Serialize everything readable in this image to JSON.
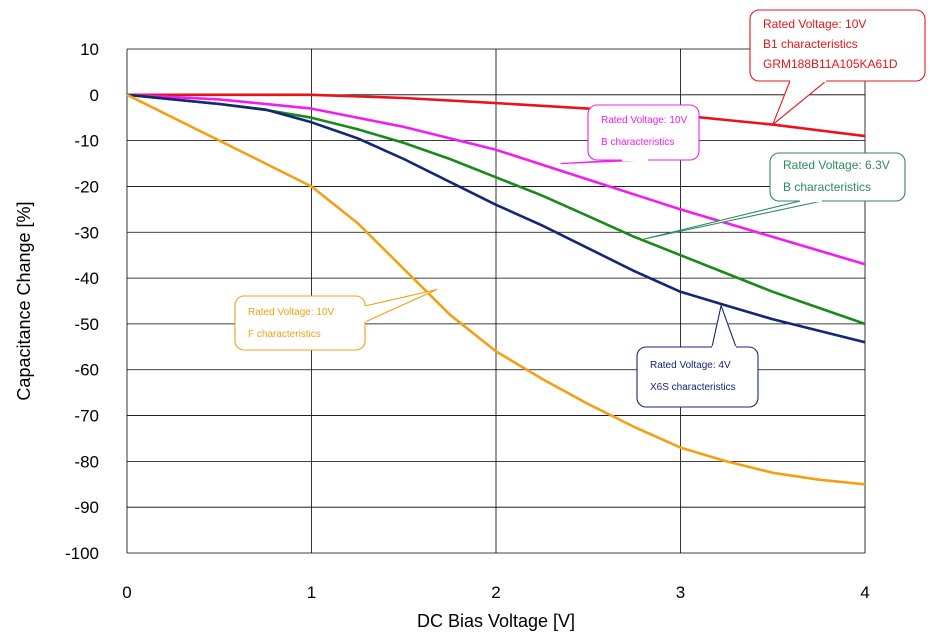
{
  "chart_data": {
    "type": "line",
    "xlabel": "DC Bias Voltage [V]",
    "ylabel": "Capacitance Change [%]",
    "xlim": [
      0,
      4
    ],
    "ylim": [
      -100,
      10
    ],
    "xticks": [
      "0",
      "1",
      "2",
      "3",
      "4"
    ],
    "yticks": [
      "10",
      "0",
      "-10",
      "-20",
      "-30",
      "-40",
      "-50",
      "-60",
      "-70",
      "-80",
      "-90",
      "-100"
    ],
    "grid": true,
    "series": [
      {
        "color": "#e8141c",
        "x": [
          0,
          1,
          1.5,
          2,
          2.5,
          3,
          3.5,
          4
        ],
        "y": [
          0,
          0,
          -0.7,
          -1.8,
          -3,
          -4.5,
          -6.5,
          -9
        ]
      },
      {
        "color": "#f01ef0",
        "x": [
          0,
          0.5,
          1,
          1.5,
          2,
          2.5,
          3,
          3.5,
          4
        ],
        "y": [
          0,
          -1,
          -3,
          -7,
          -12,
          -18.5,
          -25,
          -31,
          -37
        ]
      },
      {
        "color": "#198a19",
        "x": [
          0,
          0.5,
          0.75,
          1,
          1.25,
          1.5,
          1.75,
          2,
          2.25,
          2.5,
          2.75,
          3,
          3.25,
          3.5,
          3.75,
          4
        ],
        "y": [
          0,
          -2,
          -3.3,
          -5,
          -7.5,
          -10.5,
          -14,
          -18,
          -22,
          -26.5,
          -31,
          -35,
          -39,
          -43,
          -46.5,
          -50
        ]
      },
      {
        "color": "#152673",
        "x": [
          0,
          0.5,
          0.75,
          1,
          1.25,
          1.5,
          1.75,
          2,
          2.25,
          2.5,
          2.75,
          3,
          3.25,
          3.5,
          3.75,
          4
        ],
        "y": [
          0,
          -2,
          -3.2,
          -6,
          -9.5,
          -14,
          -19,
          -24,
          -28.5,
          -33.5,
          -38.5,
          -43,
          -46,
          -49,
          -51.5,
          -54
        ]
      },
      {
        "color": "#f4a015",
        "x": [
          0,
          0.25,
          0.5,
          0.75,
          1,
          1.25,
          1.5,
          1.75,
          2,
          2.25,
          2.5,
          2.75,
          3,
          3.25,
          3.5,
          3.75,
          4
        ],
        "y": [
          0,
          -5,
          -10,
          -15,
          -20,
          -28,
          -38,
          -48,
          -56,
          -62,
          -67.5,
          -72.5,
          -77,
          -80,
          -82.5,
          -84,
          -85
        ]
      }
    ],
    "annotations": [
      {
        "lines": [
          "Rated Voltage: 10V",
          "B1 characteristics",
          "GRM188B11A105KA61D"
        ],
        "color": "#e8141c",
        "target": [
          3.5,
          -6.5
        ]
      },
      {
        "lines": [
          "Rated Voltage: 10V",
          "B characteristics"
        ],
        "color": "#f01ef0",
        "target": [
          2.35,
          -15
        ]
      },
      {
        "lines": [
          "Rated Voltage: 6.3V",
          "B characteristics"
        ],
        "color": "#2e8b5a",
        "target": [
          2.8,
          -31.5
        ]
      },
      {
        "lines": [
          "Rated Voltage: 10V",
          "F characteristics"
        ],
        "color": "#f4a015",
        "target": [
          1.68,
          -42.5
        ]
      },
      {
        "lines": [
          "Rated Voltage: 4V",
          "X6S characteristics"
        ],
        "color": "#152673",
        "target": [
          3.22,
          -46
        ]
      }
    ]
  }
}
